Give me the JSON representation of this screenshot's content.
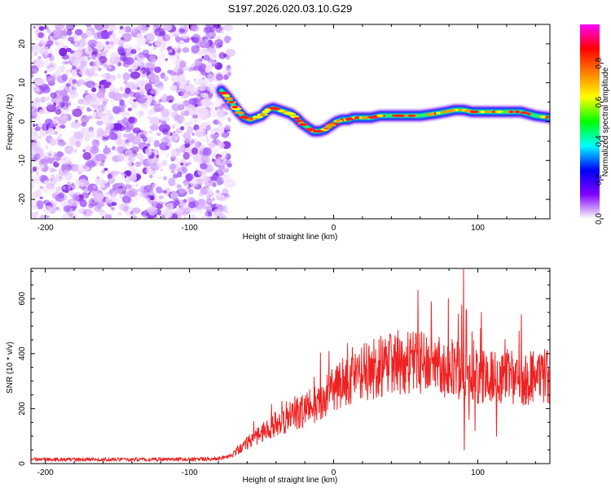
{
  "title": "S197.2026.020.03.10.G29",
  "chart_data": [
    {
      "type": "heatmap",
      "xlabel": "Height of straight line (km)",
      "ylabel": "Frequency (Hz)",
      "xlim": [
        -210,
        150
      ],
      "ylim": [
        -25,
        25
      ],
      "xticks": [
        -200,
        -100,
        0,
        100
      ],
      "yticks": [
        -20,
        -10,
        0,
        10,
        20
      ],
      "colorbar": {
        "label": "Normalized spectral amplitude",
        "range": [
          0,
          1
        ],
        "ticks": [
          "0.0",
          "0.2",
          "0.4",
          "0.6",
          "0.8"
        ],
        "colors": [
          "#ffffff",
          "#8000ff",
          "#0000ff",
          "#00ffff",
          "#00ff00",
          "#ffff00",
          "#ff8000",
          "#ff0000",
          "#ff00ff"
        ]
      },
      "noise_region_x": [
        -210,
        -75
      ],
      "ridge": {
        "x": [
          -78,
          -74,
          -70,
          -66,
          -62,
          -58,
          -54,
          -50,
          -46,
          -42,
          -38,
          -34,
          -30,
          -26,
          -22,
          -18,
          -14,
          -10,
          -6,
          -2,
          2,
          6,
          10,
          14,
          20,
          26,
          32,
          40,
          50,
          60,
          70,
          78,
          84,
          90,
          96,
          102,
          110,
          120,
          130,
          140,
          150
        ],
        "y": [
          8,
          6.5,
          4.5,
          2.5,
          1,
          0.5,
          1,
          1.5,
          3,
          3.5,
          3,
          2.5,
          2,
          1,
          -0.5,
          -1.5,
          -2.5,
          -2.5,
          -2,
          -1,
          0,
          0.5,
          0.5,
          1,
          1,
          1,
          1.5,
          1.5,
          1.5,
          1.5,
          2,
          2.5,
          3,
          3,
          2.5,
          2.5,
          2.5,
          2.5,
          2.5,
          1.5,
          1
        ]
      }
    },
    {
      "type": "line",
      "xlabel": "Height of straight line (km)",
      "ylabel": "SNR (10 * v/v)",
      "xlim": [
        -210,
        150
      ],
      "ylim": [
        0,
        710
      ],
      "xticks": [
        -200,
        -100,
        0,
        100
      ],
      "yticks": [
        0,
        200,
        400,
        600
      ],
      "series": [
        {
          "name": "SNR",
          "color": "#ee2222",
          "x": [
            -210,
            -100,
            -78,
            -70,
            -60,
            -50,
            -40,
            -30,
            -20,
            -10,
            0,
            10,
            20,
            30,
            40,
            50,
            60,
            70,
            80,
            86,
            90,
            92,
            96,
            100,
            110,
            120,
            130,
            140,
            150
          ],
          "y": [
            15,
            15,
            18,
            35,
            75,
            115,
            145,
            170,
            195,
            225,
            270,
            305,
            330,
            350,
            365,
            370,
            365,
            355,
            345,
            340,
            330,
            320,
            300,
            320,
            310,
            315,
            310,
            315,
            320
          ]
        }
      ],
      "spikes": [
        {
          "x": 90,
          "y": 710
        },
        {
          "x": 90.5,
          "y": 50
        },
        {
          "x": 92,
          "y": 560
        },
        {
          "x": 94,
          "y": 160
        },
        {
          "x": 96,
          "y": 480
        },
        {
          "x": 98,
          "y": 120
        },
        {
          "x": 113,
          "y": 100
        }
      ]
    }
  ]
}
